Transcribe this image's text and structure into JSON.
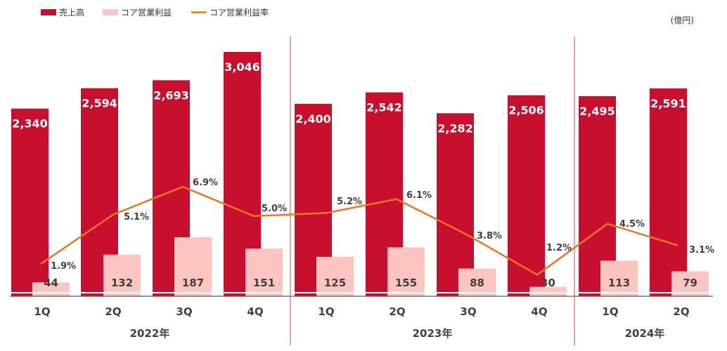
{
  "chart_data": {
    "type": "bar",
    "unit_label": "(億円)",
    "legend": [
      {
        "name": "売上高",
        "kind": "bar",
        "color": "#c8102e"
      },
      {
        "name": "コア営業利益",
        "kind": "bar",
        "color": "#fcc5c0"
      },
      {
        "name": "コア営業利益率",
        "kind": "line",
        "color": "#e87722"
      }
    ],
    "groups": [
      {
        "year": "2022年",
        "quarters": [
          "1Q",
          "2Q",
          "3Q",
          "4Q"
        ]
      },
      {
        "year": "2023年",
        "quarters": [
          "1Q",
          "2Q",
          "3Q",
          "4Q"
        ]
      },
      {
        "year": "2024年",
        "quarters": [
          "1Q",
          "2Q"
        ]
      }
    ],
    "series": [
      {
        "name": "売上高",
        "values": [
          2340,
          2594,
          2693,
          3046,
          2400,
          2542,
          2282,
          2506,
          2495,
          2591
        ],
        "labels": [
          "2,340",
          "2,594",
          "2,693",
          "3,046",
          "2,400",
          "2,542",
          "2,282",
          "2,506",
          "2,495",
          "2,591"
        ]
      },
      {
        "name": "コア営業利益",
        "values": [
          44,
          132,
          187,
          151,
          125,
          155,
          88,
          30,
          113,
          79
        ],
        "labels": [
          "44",
          "132",
          "187",
          "151",
          "125",
          "155",
          "88",
          "30",
          "113",
          "79"
        ]
      },
      {
        "name": "コア営業利益率",
        "values": [
          1.9,
          5.1,
          6.9,
          5.0,
          5.2,
          6.1,
          3.8,
          1.2,
          4.5,
          3.1
        ],
        "labels": [
          "1.9%",
          "5.1%",
          "6.9%",
          "5.0%",
          "5.2%",
          "6.1%",
          "3.8%",
          "1.2%",
          "4.5%",
          "3.1%"
        ]
      }
    ],
    "colors": {
      "sales": "#c8102e",
      "profit": "#fcc5c0",
      "rate": "#e87722",
      "divider": "#e06666",
      "axis": "#595959",
      "text": "#404040"
    }
  }
}
